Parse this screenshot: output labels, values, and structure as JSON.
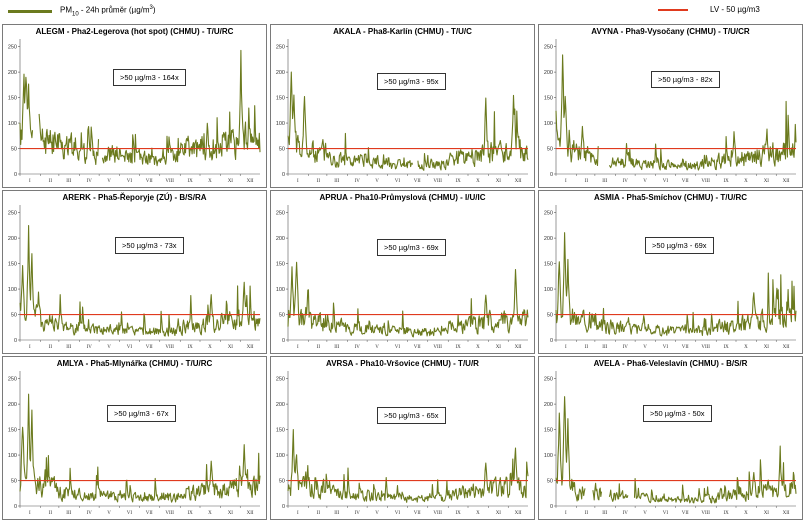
{
  "legend": {
    "pm_label": "PM",
    "pm_sub": "10",
    "pm_rest": " - 24h průměr (µg/m",
    "pm_sup": "3",
    "pm_close": ")",
    "lv_label": "LV   - 50 µg/m3",
    "pm_color": "#6b7a1e",
    "lv_color": "#e03a1e"
  },
  "chart_data": [
    {
      "type": "line",
      "title": "ALEGM - Pha2-Legerova (hot spot) (CHMU) - T/U/RC",
      "annotation": ">50 µg/m3 - 164x",
      "yticks": [
        0,
        50,
        100,
        150,
        200,
        250
      ],
      "ylim": [
        0,
        265
      ],
      "xticks": [
        "I",
        "II",
        "III",
        "IV",
        "V",
        "VI",
        "VII",
        "VIII",
        "IX",
        "X",
        "XI",
        "XII"
      ],
      "limit_value": 50,
      "profile": {
        "seed": 11,
        "base": [
          70,
          58,
          48,
          38,
          36,
          30,
          28,
          32,
          45,
          50,
          55,
          60
        ],
        "amp": 1.05,
        "peaks": [
          [
            6,
            230
          ],
          [
            9,
            235
          ],
          [
            13,
            185
          ],
          [
            28,
            165
          ],
          [
            335,
            245
          ]
        ],
        "gaps": [
          [
            20,
            28
          ],
          [
            120,
            124
          ]
        ]
      }
    },
    {
      "type": "line",
      "title": "AKALA - Pha8-Karlín (CHMU) - T/U/C",
      "annotation": ">50 µg/m3 - 95x",
      "yticks": [
        0,
        50,
        100,
        150,
        200,
        250
      ],
      "ylim": [
        0,
        265
      ],
      "xticks": [
        "I",
        "II",
        "III",
        "IV",
        "V",
        "VI",
        "VII",
        "VIII",
        "IX",
        "X",
        "XI",
        "XII"
      ],
      "limit_value": 50,
      "profile": {
        "seed": 23,
        "base": [
          60,
          48,
          36,
          30,
          28,
          22,
          20,
          24,
          36,
          44,
          48,
          52
        ],
        "amp": 0.9,
        "peaks": [
          [
            5,
            210
          ],
          [
            9,
            180
          ],
          [
            25,
            165
          ],
          [
            300,
            150
          ],
          [
            342,
            165
          ]
        ],
        "gaps": [
          [
            190,
            196
          ]
        ]
      }
    },
    {
      "type": "line",
      "title": "AVYNA - Pha9-Vysočany (CHMU) - T/U/CR",
      "annotation": ">50 µg/m3 - 82x",
      "yticks": [
        0,
        50,
        100,
        150,
        200,
        250
      ],
      "ylim": [
        0,
        265
      ],
      "xticks": [
        "I",
        "II",
        "III",
        "IV",
        "V",
        "VI",
        "VII",
        "VIII",
        "IX",
        "X",
        "XI",
        "XII"
      ],
      "limit_value": 50,
      "profile": {
        "seed": 37,
        "base": [
          60,
          50,
          34,
          28,
          26,
          22,
          20,
          24,
          34,
          42,
          50,
          55
        ],
        "amp": 0.85,
        "peaks": [
          [
            10,
            250
          ],
          [
            14,
            190
          ],
          [
            40,
            110
          ],
          [
            270,
            85
          ],
          [
            320,
            90
          ]
        ],
        "gaps": [
          [
            65,
            80
          ]
        ]
      }
    },
    {
      "type": "line",
      "title": "ARERK - Pha5-Řeporyje (ZÚ) - B/S/RA",
      "annotation": ">50 µg/m3 - 73x",
      "yticks": [
        0,
        50,
        100,
        150,
        200,
        250
      ],
      "ylim": [
        0,
        265
      ],
      "xticks": [
        "I",
        "II",
        "III",
        "IV",
        "V",
        "VI",
        "VII",
        "VIII",
        "IX",
        "X",
        "XI",
        "XII"
      ],
      "limit_value": 50,
      "profile": {
        "seed": 41,
        "base": [
          60,
          46,
          34,
          28,
          26,
          22,
          20,
          24,
          34,
          42,
          48,
          52
        ],
        "amp": 0.85,
        "peaks": [
          [
            4,
            170
          ],
          [
            13,
            230
          ],
          [
            18,
            190
          ],
          [
            290,
            100
          ],
          [
            340,
            140
          ]
        ],
        "gaps": []
      }
    },
    {
      "type": "line",
      "title": "APRUA - Pha10-Průmyslová (CHMU) - I/U/IC",
      "annotation": ">50 µg/m3 - 69x",
      "yticks": [
        0,
        50,
        100,
        150,
        200,
        250
      ],
      "ylim": [
        0,
        265
      ],
      "xticks": [
        "I",
        "II",
        "III",
        "IV",
        "V",
        "VI",
        "VII",
        "VIII",
        "IX",
        "X",
        "XI",
        "XII"
      ],
      "limit_value": 50,
      "profile": {
        "seed": 53,
        "base": [
          55,
          46,
          34,
          28,
          26,
          22,
          20,
          24,
          34,
          42,
          48,
          52
        ],
        "amp": 0.85,
        "peaks": [
          [
            6,
            170
          ],
          [
            13,
            185
          ],
          [
            30,
            100
          ],
          [
            300,
            100
          ],
          [
            345,
            155
          ]
        ],
        "gaps": []
      }
    },
    {
      "type": "line",
      "title": "ASMIA - Pha5-Smíchov (CHMU) - T/U/RC",
      "annotation": ">50 µg/m3 - 69x",
      "yticks": [
        0,
        50,
        100,
        150,
        200,
        250
      ],
      "ylim": [
        0,
        265
      ],
      "xticks": [
        "I",
        "II",
        "III",
        "IV",
        "V",
        "VI",
        "VII",
        "VIII",
        "IX",
        "X",
        "XI",
        "XII"
      ],
      "limit_value": 50,
      "profile": {
        "seed": 67,
        "base": [
          58,
          48,
          36,
          30,
          28,
          24,
          22,
          26,
          36,
          44,
          50,
          54
        ],
        "amp": 0.85,
        "peaks": [
          [
            5,
            180
          ],
          [
            13,
            220
          ],
          [
            18,
            160
          ],
          [
            300,
            115
          ],
          [
            335,
            110
          ]
        ],
        "gaps": []
      }
    },
    {
      "type": "line",
      "title": "AMLYA - Pha5-Mlynářka (CHMU) - T/U/RC",
      "annotation": ">50 µg/m3 - 67x",
      "yticks": [
        0,
        50,
        100,
        150,
        200,
        250
      ],
      "ylim": [
        0,
        265
      ],
      "xticks": [
        "I",
        "II",
        "III",
        "IV",
        "V",
        "VI",
        "VII",
        "VIII",
        "IX",
        "X",
        "XI",
        "XII"
      ],
      "limit_value": 50,
      "profile": {
        "seed": 71,
        "base": [
          56,
          46,
          34,
          28,
          26,
          22,
          20,
          24,
          34,
          42,
          48,
          52
        ],
        "amp": 0.85,
        "peaks": [
          [
            4,
            180
          ],
          [
            13,
            220
          ],
          [
            18,
            190
          ],
          [
            290,
            100
          ],
          [
            340,
            135
          ]
        ],
        "gaps": []
      }
    },
    {
      "type": "line",
      "title": "AVRSA - Pha10-Vršovice (CHMU) - T/U/R",
      "annotation": ">50 µg/m3 - 65x",
      "yticks": [
        0,
        50,
        100,
        150,
        200,
        250
      ],
      "ylim": [
        0,
        265
      ],
      "xticks": [
        "I",
        "II",
        "III",
        "IV",
        "V",
        "VI",
        "VII",
        "VIII",
        "IX",
        "X",
        "XI",
        "XII"
      ],
      "limit_value": 50,
      "profile": {
        "seed": 83,
        "base": [
          55,
          44,
          32,
          26,
          24,
          20,
          18,
          22,
          32,
          40,
          46,
          50
        ],
        "amp": 0.85,
        "peaks": [
          [
            8,
            155
          ],
          [
            13,
            120
          ],
          [
            30,
            80
          ],
          [
            300,
            95
          ],
          [
            345,
            125
          ]
        ],
        "gaps": []
      }
    },
    {
      "type": "line",
      "title": "AVELA - Pha6-Veleslavín (CHMU) - B/S/R",
      "annotation": ">50 µg/m3 - 50x",
      "yticks": [
        0,
        50,
        100,
        150,
        200,
        250
      ],
      "ylim": [
        0,
        265
      ],
      "xticks": [
        "I",
        "II",
        "III",
        "IV",
        "V",
        "VI",
        "VII",
        "VIII",
        "IX",
        "X",
        "XI",
        "XII"
      ],
      "limit_value": 50,
      "profile": {
        "seed": 97,
        "base": [
          55,
          42,
          30,
          24,
          22,
          18,
          16,
          20,
          30,
          38,
          44,
          48
        ],
        "amp": 0.8,
        "peaks": [
          [
            5,
            200
          ],
          [
            13,
            250
          ],
          [
            18,
            175
          ],
          [
            300,
            80
          ],
          [
            340,
            105
          ]
        ],
        "gaps": [
          [
            45,
            55
          ],
          [
            70,
            80
          ],
          [
            110,
            118
          ]
        ]
      }
    }
  ]
}
